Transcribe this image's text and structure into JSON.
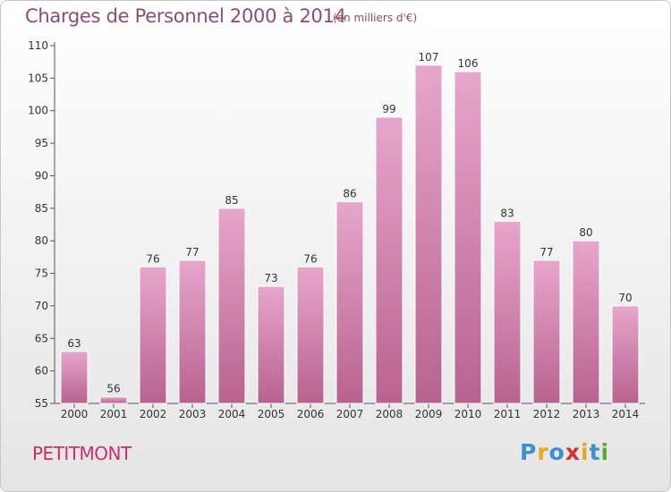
{
  "header": {
    "title": "Charges de Personnel 2000 à 2014",
    "subtitle": "(en milliers d'€)"
  },
  "footer": {
    "town": "PETITMONT",
    "logo_text": "Proxiti",
    "logo_colors": [
      "#3a8fd6",
      "#e8a81b",
      "#3a8fd6",
      "#d9302b",
      "#e8a81b",
      "#3a8fd6",
      "#5aa832"
    ]
  },
  "colors": {
    "bar_top": "#e7a6cb",
    "bar_bottom": "#b8638f",
    "axis": "#555555",
    "grid": "#d8d8d8",
    "text": "#333333"
  },
  "chart_data": {
    "type": "bar",
    "categories": [
      "2000",
      "2001",
      "2002",
      "2003",
      "2004",
      "2005",
      "2006",
      "2007",
      "2008",
      "2009",
      "2010",
      "2011",
      "2012",
      "2013",
      "2014"
    ],
    "values": [
      63,
      56,
      76,
      77,
      85,
      73,
      76,
      86,
      99,
      107,
      106,
      83,
      77,
      80,
      70
    ],
    "title": "Charges de Personnel 2000 à 2014",
    "subtitle": "(en milliers d'€)",
    "ylim": [
      55,
      110
    ],
    "yticks": [
      55,
      60,
      65,
      70,
      75,
      80,
      85,
      90,
      95,
      100,
      105,
      110
    ],
    "grid": false,
    "data_labels": true
  }
}
